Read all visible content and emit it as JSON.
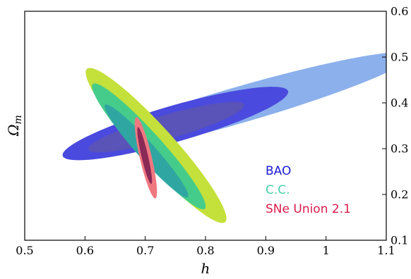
{
  "chart_data": {
    "type": "contour",
    "xlabel": "h",
    "ylabel": "Ω",
    "ylabel_sub": "m",
    "xlim": [
      0.5,
      1.1
    ],
    "ylim": [
      0.1,
      0.6
    ],
    "x_ticks": [
      0.5,
      0.6,
      0.7,
      0.8,
      0.9,
      1.0,
      1.1
    ],
    "x_tick_labels": [
      "0.5",
      "0.6",
      "0.7",
      "0.8",
      "0.9",
      "1",
      "1.1"
    ],
    "y_ticks": [
      0.1,
      0.2,
      0.3,
      0.4,
      0.5,
      0.6
    ],
    "y_tick_labels": [
      "0.1",
      "0.2",
      "0.3",
      "0.4",
      "0.5",
      "0.6"
    ],
    "y_axis_side": "right",
    "grid": false,
    "legend_position": "lower-right",
    "series": [
      {
        "name": "BAO",
        "legend_color": "#1a1ad6",
        "contours": [
          {
            "level": "3sigma",
            "fill": "#8cb0ec",
            "center": [
              0.855,
              0.395
            ],
            "semi_major": 0.308,
            "semi_minor": 0.0385,
            "angle_deg": 21.0
          },
          {
            "level": "2sigma",
            "fill": "#4a4ade",
            "center": [
              0.75,
              0.355
            ],
            "semi_major": 0.2,
            "semi_minor": 0.0385,
            "angle_deg": 21.0
          },
          {
            "level": "1sigma",
            "fill": "#5a53b8",
            "center": [
              0.735,
              0.347
            ],
            "semi_major": 0.138,
            "semi_minor": 0.026,
            "angle_deg": 21.0
          }
        ]
      },
      {
        "name": "C.C.",
        "legend_color": "#46d0a8",
        "contours": [
          {
            "level": "3sigma",
            "fill": "#c4e03a",
            "center": [
              0.718,
              0.307
            ],
            "semi_major": 0.203,
            "semi_minor": 0.033,
            "angle_deg": -56.0
          },
          {
            "level": "2sigma",
            "fill": "#46cc8a",
            "center": [
              0.706,
              0.305
            ],
            "semi_major": 0.165,
            "semi_minor": 0.024,
            "angle_deg": -56.0
          },
          {
            "level": "1sigma",
            "fill": "#2fa6a2",
            "center": [
              0.702,
              0.295
            ],
            "semi_major": 0.122,
            "semi_minor": 0.016,
            "angle_deg": -56.0
          }
        ]
      },
      {
        "name": "SNe Union 2.1",
        "legend_color": "#d81c4e",
        "contours": [
          {
            "level": "2sigma",
            "fill": "#f07880",
            "center": [
              0.701,
              0.28
            ],
            "semi_major": 0.09,
            "semi_minor": 0.01,
            "angle_deg": -80.0
          },
          {
            "level": "1sigma",
            "fill": "#8a2a56",
            "center": [
              0.699,
              0.285
            ],
            "semi_major": 0.063,
            "semi_minor": 0.0055,
            "angle_deg": -80.0
          }
        ]
      }
    ]
  }
}
